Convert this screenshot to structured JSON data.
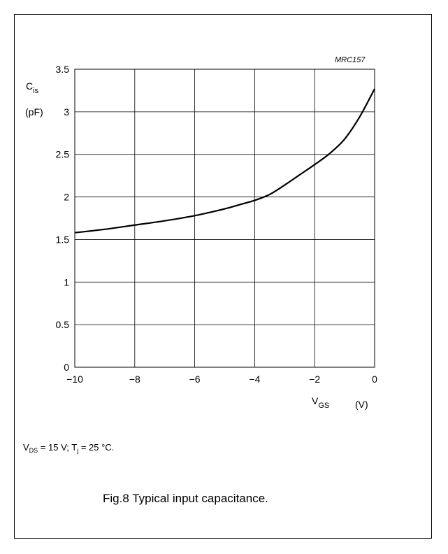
{
  "chart_data": {
    "type": "line",
    "code": "MRC157",
    "title": "",
    "ylabel_main": "C",
    "ylabel_sub": "is",
    "ylabel_unit": "(pF)",
    "xlabel_main": "V",
    "xlabel_sub": "GS",
    "xlabel_unit": "(V)",
    "xlim": [
      -10,
      0
    ],
    "ylim": [
      0,
      3.5
    ],
    "grid": true,
    "x_ticks": [
      "−10",
      "−8",
      "−6",
      "−4",
      "−2",
      "0"
    ],
    "x_tick_values": [
      -10,
      -8,
      -6,
      -4,
      -2,
      0
    ],
    "y_ticks": [
      "0",
      "0.5",
      "1",
      "1.5",
      "2",
      "2.5",
      "3",
      "3.5"
    ],
    "y_tick_values": [
      0,
      0.5,
      1,
      1.5,
      2,
      2.5,
      3,
      3.5
    ],
    "series": [
      {
        "x": [
          -10,
          -9,
          -8,
          -7,
          -6,
          -5,
          -4.5,
          -4,
          -3.5,
          -3,
          -2.5,
          -2,
          -1.5,
          -1,
          -0.5,
          0
        ],
        "y": [
          1.58,
          1.62,
          1.67,
          1.72,
          1.78,
          1.86,
          1.91,
          1.96,
          2.03,
          2.14,
          2.26,
          2.38,
          2.51,
          2.68,
          2.94,
          3.27
        ]
      }
    ]
  },
  "conditions": {
    "vds_main": "V",
    "vds_sub": "DS",
    "vds_rest": " = 15 V; T",
    "tj_sub": "j",
    "tj_rest": " = 25 °C."
  },
  "caption": "Fig.8  Typical input capacitance."
}
